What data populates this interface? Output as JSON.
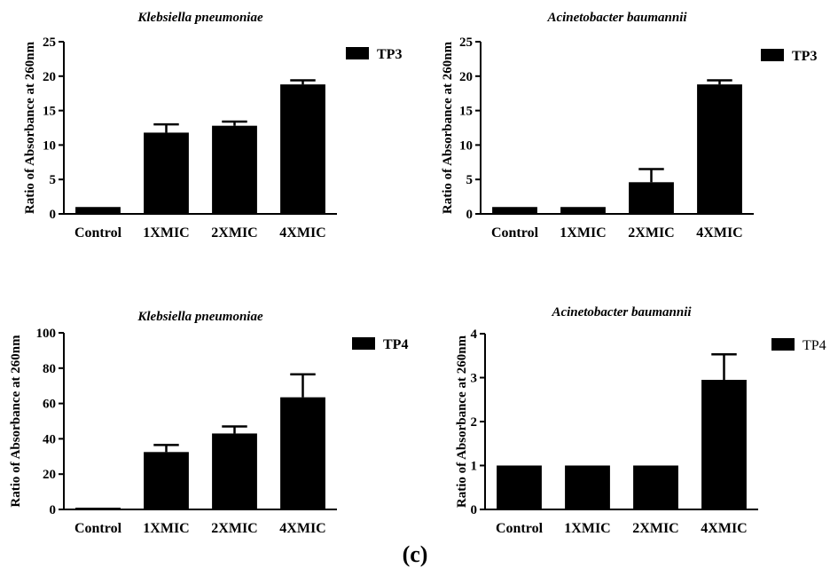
{
  "figure": {
    "panel_label": "(c)"
  },
  "chart_data": [
    {
      "type": "bar",
      "title": "Klebsiella pneumoniae",
      "ylabel": "Ratio of Absorbance at 260nm",
      "xlabel": "",
      "categories": [
        "Control",
        "1XMIC",
        "2XMIC",
        "4XMIC"
      ],
      "series": [
        {
          "name": "TP3",
          "values": [
            1.0,
            11.8,
            12.8,
            18.8
          ],
          "errors": [
            0.0,
            1.2,
            0.6,
            0.6
          ]
        }
      ],
      "ylim": [
        0,
        25
      ],
      "yticks": [
        0,
        5,
        10,
        15,
        20,
        25
      ],
      "ytick_labels": [
        "0",
        "5",
        "10",
        "15",
        "20",
        "25"
      ],
      "legend": {
        "position": "top-right",
        "label": "TP3",
        "bold": true
      },
      "grid": false,
      "bar_color": "#000000"
    },
    {
      "type": "bar",
      "title": "Acinetobacter baumannii",
      "ylabel": "Ratio of Absorbance at 260nm",
      "xlabel": "",
      "categories": [
        "Control",
        "1XMIC",
        "2XMIC",
        "4XMIC"
      ],
      "series": [
        {
          "name": "TP3",
          "values": [
            1.0,
            1.0,
            4.6,
            18.8
          ],
          "errors": [
            0.0,
            0.0,
            1.9,
            0.6
          ]
        }
      ],
      "ylim": [
        0,
        25
      ],
      "yticks": [
        0,
        5,
        10,
        15,
        20,
        25
      ],
      "ytick_labels": [
        "0",
        "5",
        "10",
        "15",
        "20",
        "25"
      ],
      "legend": {
        "position": "top-right",
        "label": "TP3",
        "bold": true
      },
      "grid": false,
      "bar_color": "#000000"
    },
    {
      "type": "bar",
      "title": "Klebsiella pneumoniae",
      "ylabel": "Ratio of Absorbance at 260nm",
      "xlabel": "",
      "categories": [
        "Control",
        "1XMIC",
        "2XMIC",
        "4XMIC"
      ],
      "series": [
        {
          "name": "TP4",
          "values": [
            1.0,
            32.5,
            43.0,
            63.5
          ],
          "errors": [
            0.0,
            4.0,
            4.0,
            13.0
          ]
        }
      ],
      "ylim": [
        0,
        100
      ],
      "yticks": [
        0,
        20,
        40,
        60,
        80,
        100
      ],
      "ytick_labels": [
        "0",
        "20",
        "40",
        "60",
        "80",
        "100"
      ],
      "legend": {
        "position": "top-right",
        "label": "TP4",
        "bold": true
      },
      "grid": false,
      "bar_color": "#000000"
    },
    {
      "type": "bar",
      "title": "Acinetobacter baumannii",
      "ylabel": "Ratio of Absorbance at 260nm",
      "xlabel": "",
      "categories": [
        "Control",
        "1XMIC",
        "2XMIC",
        "4XMIC"
      ],
      "series": [
        {
          "name": "TP4",
          "values": [
            1.0,
            1.0,
            1.0,
            2.95
          ],
          "errors": [
            0.0,
            0.0,
            0.0,
            0.58
          ]
        }
      ],
      "ylim": [
        0,
        4
      ],
      "yticks": [
        0,
        1,
        2,
        3,
        4
      ],
      "ytick_labels": [
        "0",
        "1",
        "2",
        "3",
        "4"
      ],
      "legend": {
        "position": "top-right",
        "label": "TP4",
        "bold": false
      },
      "grid": false,
      "bar_color": "#000000"
    }
  ]
}
